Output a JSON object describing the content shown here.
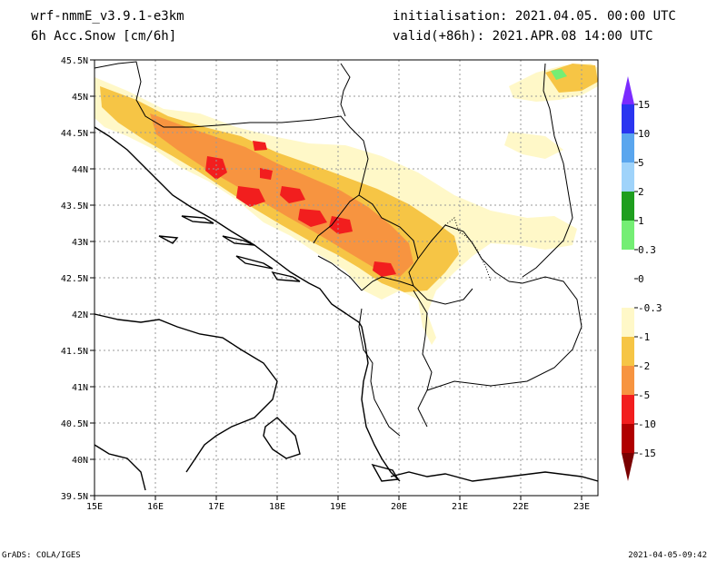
{
  "header": {
    "model": "wrf-nmmE_v3.9.1-e3km",
    "variable": "6h Acc.Snow [cm/6h]",
    "initialisation": "initialisation: 2021.04.05.  00:00 UTC",
    "valid": "valid(+86h): 2021.APR.08 14:00 UTC"
  },
  "map": {
    "lon_range": [
      15,
      23.25
    ],
    "lat_range": [
      39.5,
      45.5
    ],
    "lon_ticks": [
      "15E",
      "16E",
      "17E",
      "18E",
      "19E",
      "20E",
      "21E",
      "22E",
      "23E"
    ],
    "lat_ticks": [
      "39.5N",
      "40N",
      "40.5N",
      "41N",
      "41.5N",
      "42N",
      "42.5N",
      "43N",
      "43.5N",
      "44N",
      "44.5N",
      "45N",
      "45.5N"
    ]
  },
  "legend": {
    "labels": [
      "15",
      "10",
      "5",
      "2",
      "1",
      "0.3",
      "0",
      "-0.3",
      "-1",
      "-2",
      "-5",
      "-10",
      "-15"
    ],
    "colors": [
      "#7b2bff",
      "#2a35f0",
      "#5aa6ee",
      "#9fd3fa",
      "#1e9e1e",
      "#74ee74",
      "#ffffff",
      "#ffffff",
      "#fff8c8",
      "#f6c545",
      "#f79440",
      "#f21e1e",
      "#b00000",
      "#7a0000"
    ]
  },
  "footer": {
    "left": "GrADS: COLA/IGES",
    "right": "2021-04-05-09:42"
  }
}
